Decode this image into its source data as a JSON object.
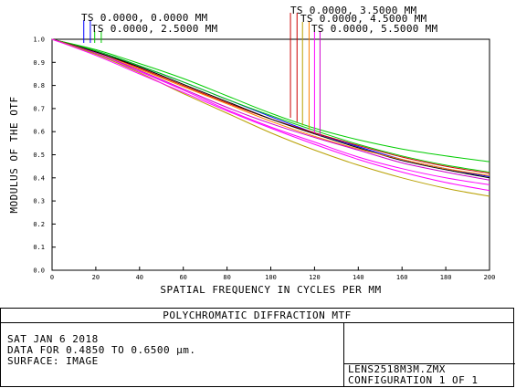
{
  "chart_data": {
    "type": "line",
    "title": "POLYCHROMATIC DIFFRACTION MTF",
    "xlabel": "SPATIAL FREQUENCY IN CYCLES PER MM",
    "ylabel": "MODULUS OF THE OTF",
    "xlim": [
      0,
      200
    ],
    "ylim": [
      0,
      1
    ],
    "x_ticks": [
      "0",
      "20",
      "40",
      "60",
      "80",
      "100",
      "120",
      "140",
      "160",
      "180",
      "200"
    ],
    "y_ticks": [
      "0.0",
      "0.1",
      "0.2",
      "0.3",
      "0.4",
      "0.5",
      "0.6",
      "0.7",
      "0.8",
      "0.9",
      "1.0"
    ],
    "grid": false,
    "field_labels": [
      "TS 0.0000, 0.0000 MM",
      "TS 0.0000, 2.5000 MM",
      "TS 0.0000, 3.5000 MM",
      "TS 0.0000, 4.5000 MM",
      "TS 0.0000, 5.5000 MM"
    ],
    "x": [
      0,
      20,
      40,
      60,
      80,
      100,
      120,
      140,
      160,
      180,
      200
    ],
    "series": [
      {
        "color": "#0000ff",
        "values": [
          1.0,
          0.95,
          0.885,
          0.815,
          0.74,
          0.665,
          0.595,
          0.535,
          0.48,
          0.44,
          0.405
        ]
      },
      {
        "color": "#00cc00",
        "values": [
          1.0,
          0.955,
          0.895,
          0.83,
          0.755,
          0.68,
          0.615,
          0.565,
          0.525,
          0.495,
          0.47
        ]
      },
      {
        "color": "#00cc00",
        "values": [
          1.0,
          0.95,
          0.885,
          0.815,
          0.74,
          0.67,
          0.605,
          0.545,
          0.495,
          0.455,
          0.425
        ]
      },
      {
        "color": "#cc0000",
        "values": [
          1.0,
          0.945,
          0.875,
          0.8,
          0.725,
          0.655,
          0.595,
          0.54,
          0.49,
          0.45,
          0.42
        ]
      },
      {
        "color": "#000000",
        "values": [
          1.0,
          0.945,
          0.88,
          0.805,
          0.73,
          0.655,
          0.59,
          0.53,
          0.475,
          0.435,
          0.4
        ]
      },
      {
        "color": "#ff8000",
        "values": [
          1.0,
          0.94,
          0.87,
          0.795,
          0.72,
          0.645,
          0.58,
          0.525,
          0.48,
          0.44,
          0.41
        ]
      },
      {
        "color": "#cc00cc",
        "values": [
          1.0,
          0.94,
          0.865,
          0.785,
          0.705,
          0.635,
          0.575,
          0.52,
          0.465,
          0.425,
          0.39
        ]
      },
      {
        "color": "#ff00ff",
        "values": [
          1.0,
          0.935,
          0.86,
          0.78,
          0.695,
          0.62,
          0.555,
          0.49,
          0.44,
          0.4,
          0.37
        ]
      },
      {
        "color": "#b8a000",
        "values": [
          1.0,
          0.935,
          0.855,
          0.765,
          0.68,
          0.595,
          0.52,
          0.455,
          0.4,
          0.355,
          0.32
        ]
      },
      {
        "color": "#ff00ff",
        "values": [
          1.0,
          0.93,
          0.85,
          0.77,
          0.69,
          0.615,
          0.545,
          0.48,
          0.425,
          0.38,
          0.345
        ]
      }
    ],
    "field_markers": [
      {
        "x": 14.5,
        "color": "#0000ff",
        "label_index": 0
      },
      {
        "x": 17.5,
        "color": "#0000ff",
        "label_index": 0
      },
      {
        "x": 19.5,
        "color": "#00cc00",
        "label_index": 1
      },
      {
        "x": 22.5,
        "color": "#00cc00",
        "label_index": 1
      },
      {
        "x": 109.0,
        "color": "#cc0000",
        "label_index": 2
      },
      {
        "x": 112.0,
        "color": "#cc0000",
        "label_index": 2
      },
      {
        "x": 114.5,
        "color": "#b8a000",
        "label_index": 3
      },
      {
        "x": 117.5,
        "color": "#ff8000",
        "label_index": 3
      },
      {
        "x": 120.0,
        "color": "#ff00ff",
        "label_index": 4
      },
      {
        "x": 122.5,
        "color": "#cc00cc",
        "label_index": 4
      }
    ]
  },
  "footer": {
    "title": "POLYCHROMATIC DIFFRACTION MTF",
    "date": "SAT JAN 6 2018",
    "data_range": "DATA FOR 0.4850 TO 0.6500 µm.",
    "surface": "SURFACE: IMAGE",
    "file": "LENS2518M3M.ZMX",
    "configuration": "CONFIGURATION 1 OF 1"
  }
}
